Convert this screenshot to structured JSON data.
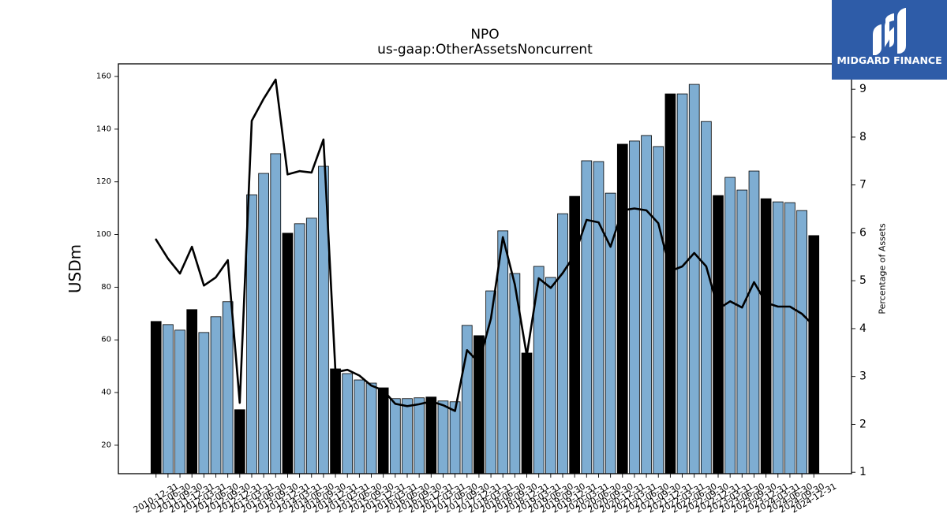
{
  "logo": {
    "text": "MIDGARD FINANCE",
    "icon": "midgard-logo-icon",
    "background": "#2e5ca8"
  },
  "chart_data": {
    "type": "bar",
    "title": "NPO",
    "subtitle": "us-gaap:OtherAssetsNoncurrent",
    "ylabel": "USDm",
    "y2label": "Percentage of Assets",
    "categories": [
      "2010-12-31",
      "2011-06-30",
      "2011-09-30",
      "2011-12-31",
      "2012-03-31",
      "2012-06-30",
      "2012-09-30",
      "2012-12-31",
      "2013-03-31",
      "2013-06-30",
      "2013-09-30",
      "2013-12-31",
      "2014-03-31",
      "2014-06-30",
      "2014-09-30",
      "2014-12-31",
      "2015-03-31",
      "2015-06-30",
      "2015-09-30",
      "2015-12-31",
      "2016-03-31",
      "2016-06-30",
      "2016-09-30",
      "2016-12-31",
      "2017-03-31",
      "2017-06-30",
      "2017-09-30",
      "2017-12-31",
      "2018-03-31",
      "2018-06-30",
      "2018-09-30",
      "2018-12-31",
      "2019-03-31",
      "2019-06-30",
      "2019-09-30",
      "2019-12-31",
      "2020-03-31",
      "2020-06-30",
      "2020-09-30",
      "2020-12-31",
      "2021-03-31",
      "2021-06-30",
      "2021-09-30",
      "2021-12-31",
      "2022-03-31",
      "2022-06-30",
      "2022-09-30",
      "2022-12-31",
      "2023-03-31",
      "2023-06-30",
      "2023-09-30",
      "2023-12-31",
      "2024-03-31",
      "2024-06-30",
      "2024-09-30",
      "2024-12-31"
    ],
    "series": [
      {
        "type": "bar",
        "values": [
          67.0,
          65.8,
          63.7,
          71.5,
          62.8,
          68.8,
          74.5,
          33.5,
          115.1,
          123.2,
          130.7,
          100.5,
          104.1,
          106.2,
          125.9,
          49.0,
          47.2,
          44.8,
          43.6,
          41.8,
          37.7,
          37.7,
          38.0,
          38.3,
          36.8,
          36.5,
          65.5,
          61.6,
          78.6,
          101.4,
          85.2,
          55.0,
          87.9,
          83.7,
          107.9,
          114.5,
          128.0,
          127.7,
          115.7,
          134.3,
          135.5,
          137.6,
          133.4,
          153.4,
          153.4,
          157.0,
          142.9,
          114.8,
          121.7,
          116.9,
          124.1,
          113.6,
          112.4,
          112.1,
          109.1,
          99.6
        ],
        "colors": [
          "#000000",
          "#7eadd2",
          "#7eadd2",
          "#000000",
          "#7eadd2",
          "#7eadd2",
          "#7eadd2",
          "#000000",
          "#7eadd2",
          "#7eadd2",
          "#7eadd2",
          "#000000",
          "#7eadd2",
          "#7eadd2",
          "#7eadd2",
          "#000000",
          "#7eadd2",
          "#7eadd2",
          "#7eadd2",
          "#000000",
          "#7eadd2",
          "#7eadd2",
          "#7eadd2",
          "#000000",
          "#7eadd2",
          "#7eadd2",
          "#7eadd2",
          "#000000",
          "#7eadd2",
          "#7eadd2",
          "#7eadd2",
          "#000000",
          "#7eadd2",
          "#7eadd2",
          "#7eadd2",
          "#000000",
          "#7eadd2",
          "#7eadd2",
          "#7eadd2",
          "#000000",
          "#7eadd2",
          "#7eadd2",
          "#7eadd2",
          "#000000",
          "#7eadd2",
          "#7eadd2",
          "#7eadd2",
          "#000000",
          "#7eadd2",
          "#7eadd2",
          "#7eadd2",
          "#000000",
          "#7eadd2",
          "#7eadd2",
          "#7eadd2",
          "#000000"
        ]
      },
      {
        "type": "line",
        "secondary_axis": true,
        "color": "#000000",
        "values": [
          5.86,
          5.46,
          5.15,
          5.71,
          4.9,
          5.07,
          5.43,
          2.45,
          8.34,
          8.8,
          9.2,
          7.22,
          7.29,
          7.26,
          7.95,
          3.09,
          3.14,
          3.02,
          2.81,
          2.71,
          2.43,
          2.38,
          2.42,
          2.48,
          2.4,
          2.28,
          3.55,
          3.29,
          4.21,
          5.91,
          4.92,
          3.44,
          5.05,
          4.85,
          5.16,
          5.54,
          6.27,
          6.22,
          5.71,
          6.47,
          6.51,
          6.47,
          6.2,
          5.2,
          5.3,
          5.58,
          5.3,
          4.41,
          4.57,
          4.44,
          4.97,
          4.54,
          4.46,
          4.46,
          4.31,
          4.06
        ]
      }
    ],
    "ylim": [
      9.2,
      164.8
    ],
    "y2lim": [
      0.97,
      9.53
    ],
    "yticks": [
      20,
      40,
      60,
      80,
      100,
      120,
      140,
      160
    ],
    "y2ticks": [
      1,
      2,
      3,
      4,
      5,
      6,
      7,
      8,
      9
    ],
    "grid": false
  }
}
